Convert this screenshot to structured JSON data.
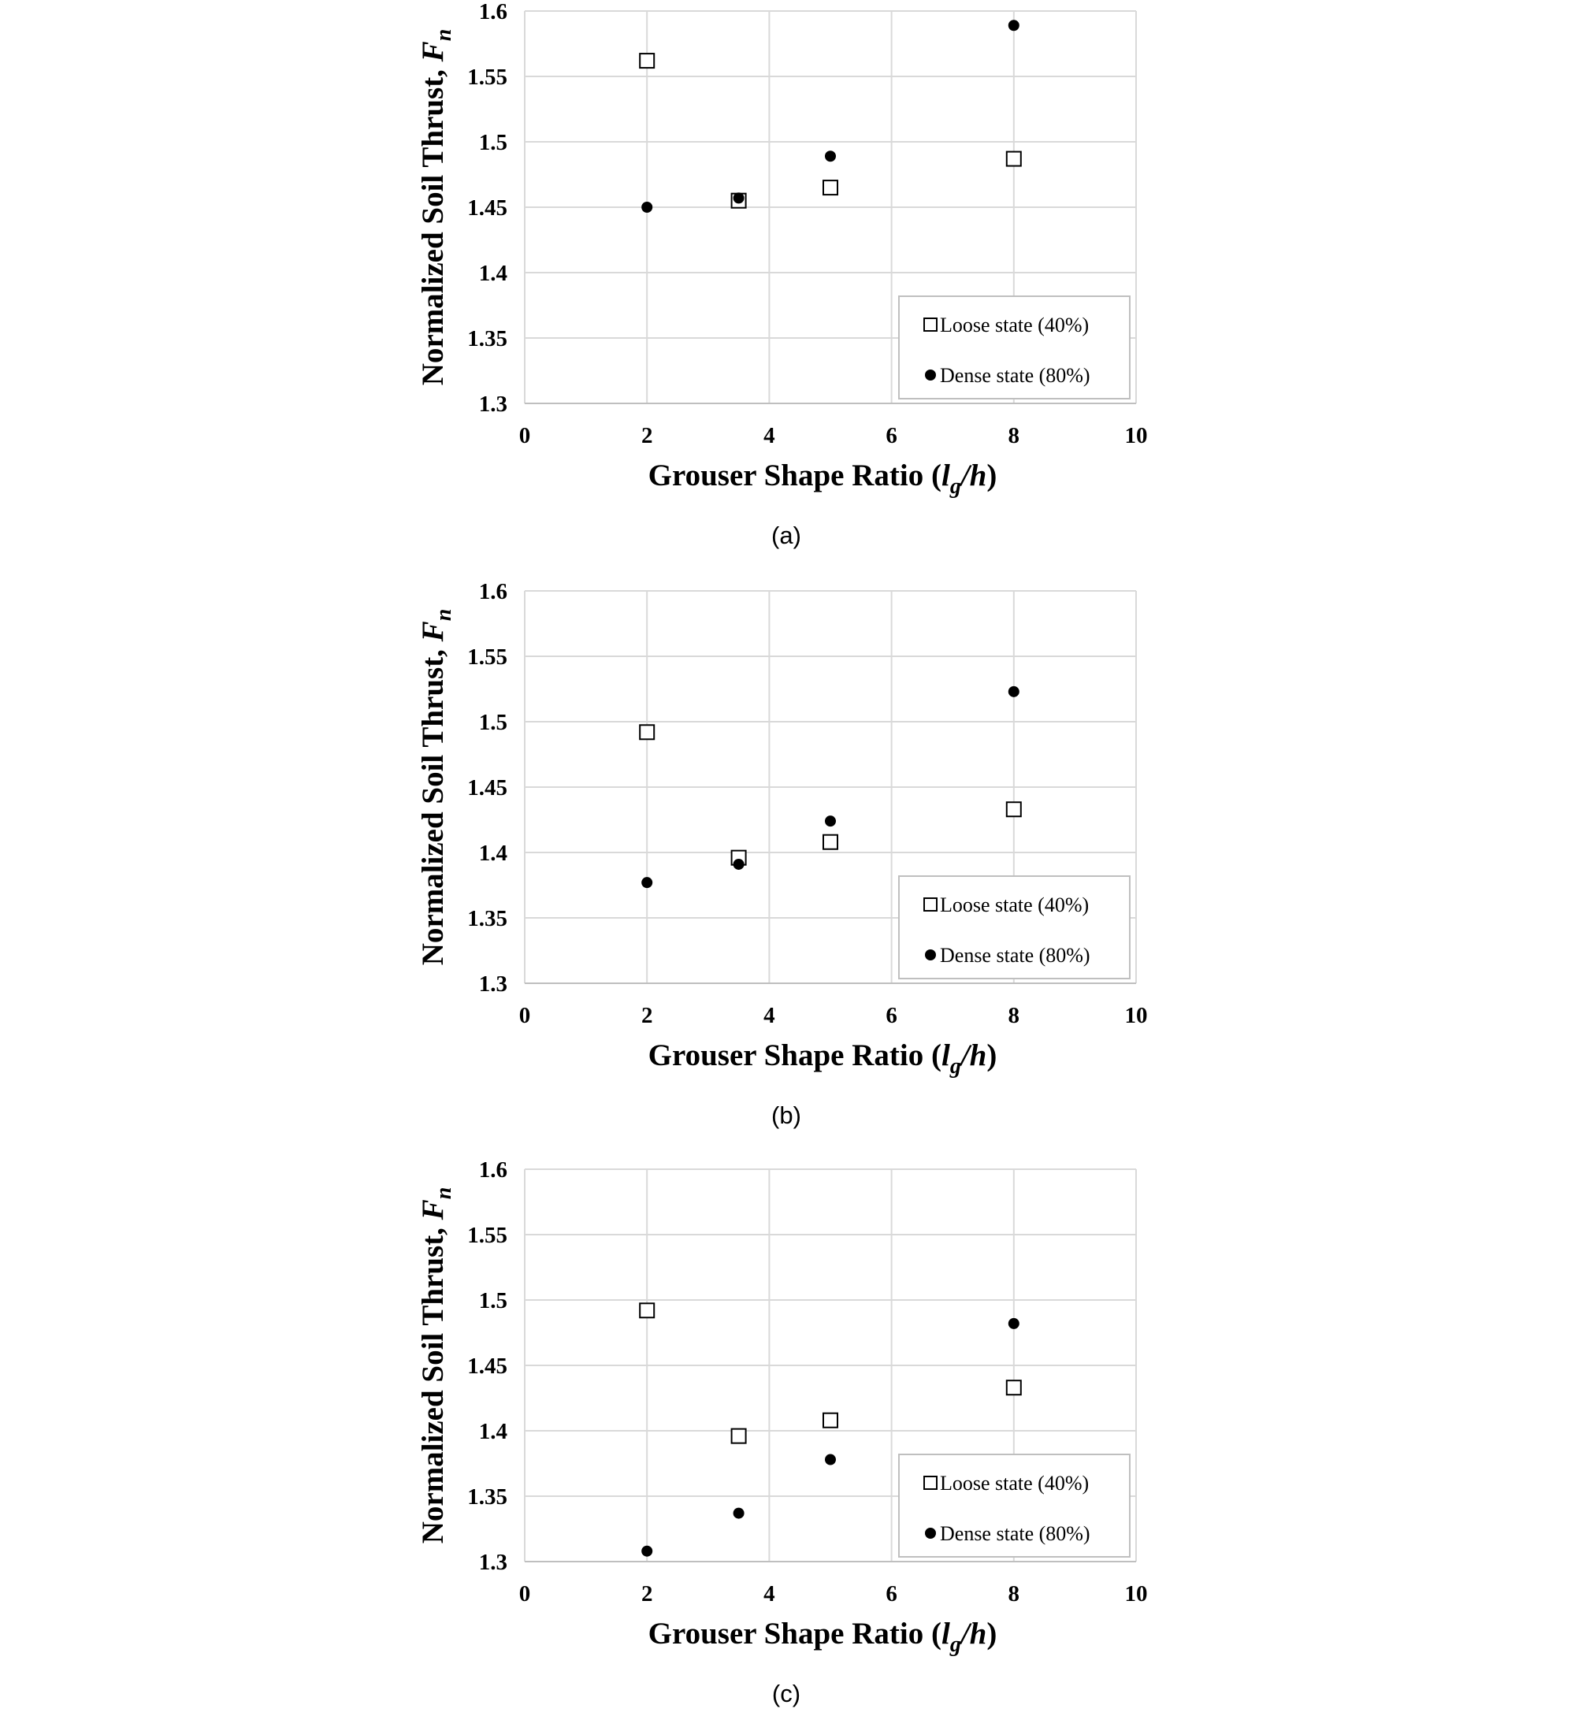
{
  "chart_data": [
    {
      "type": "scatter",
      "panel_label": "(a)",
      "xlabel": "Grouser Shape Ratio (lg/h)",
      "ylabel": "Normalized Soil Thrust, Fn",
      "xlim": [
        0,
        10
      ],
      "ylim": [
        1.3,
        1.6
      ],
      "xticks": [
        "0",
        "2",
        "4",
        "6",
        "8",
        "10"
      ],
      "yticks": [
        "1.3",
        "1.35",
        "1.4",
        "1.45",
        "1.5",
        "1.55",
        "1.6"
      ],
      "grid": true,
      "legend_position": "bottom-right",
      "series": [
        {
          "name": "Loose state (40%)",
          "marker": "open-square",
          "points": [
            [
              2,
              1.562
            ],
            [
              3.5,
              1.455
            ],
            [
              5,
              1.465
            ],
            [
              8,
              1.487
            ]
          ]
        },
        {
          "name": "Dense state (80%)",
          "marker": "filled-circle",
          "points": [
            [
              2,
              1.45
            ],
            [
              3.5,
              1.457
            ],
            [
              5,
              1.489
            ],
            [
              8,
              1.589
            ]
          ]
        }
      ]
    },
    {
      "type": "scatter",
      "panel_label": "(b)",
      "xlabel": "Grouser Shape Ratio (lg/h)",
      "ylabel": "Normalized Soil Thrust, Fn",
      "xlim": [
        0,
        10
      ],
      "ylim": [
        1.3,
        1.6
      ],
      "xticks": [
        "0",
        "2",
        "4",
        "6",
        "8",
        "10"
      ],
      "yticks": [
        "1.3",
        "1.35",
        "1.4",
        "1.45",
        "1.5",
        "1.55",
        "1.6"
      ],
      "grid": true,
      "legend_position": "bottom-right",
      "series": [
        {
          "name": "Loose state (40%)",
          "marker": "open-square",
          "points": [
            [
              2,
              1.492
            ],
            [
              3.5,
              1.396
            ],
            [
              5,
              1.408
            ],
            [
              8,
              1.433
            ]
          ]
        },
        {
          "name": "Dense state (80%)",
          "marker": "filled-circle",
          "points": [
            [
              2,
              1.377
            ],
            [
              3.5,
              1.391
            ],
            [
              5,
              1.424
            ],
            [
              8,
              1.523
            ]
          ]
        }
      ]
    },
    {
      "type": "scatter",
      "panel_label": "(c)",
      "xlabel": "Grouser Shape Ratio (lg/h)",
      "ylabel": "Normalized Soil Thrust, Fn",
      "xlim": [
        0,
        10
      ],
      "ylim": [
        1.3,
        1.6
      ],
      "xticks": [
        "0",
        "2",
        "4",
        "6",
        "8",
        "10"
      ],
      "yticks": [
        "1.3",
        "1.35",
        "1.4",
        "1.45",
        "1.5",
        "1.55",
        "1.6"
      ],
      "grid": true,
      "legend_position": "bottom-right",
      "series": [
        {
          "name": "Loose state (40%)",
          "marker": "open-square",
          "points": [
            [
              2,
              1.492
            ],
            [
              3.5,
              1.396
            ],
            [
              5,
              1.408
            ],
            [
              8,
              1.433
            ]
          ]
        },
        {
          "name": "Dense state (80%)",
          "marker": "filled-circle",
          "points": [
            [
              2,
              1.308
            ],
            [
              3.5,
              1.337
            ],
            [
              5,
              1.378
            ],
            [
              8,
              1.482
            ]
          ]
        }
      ]
    }
  ]
}
